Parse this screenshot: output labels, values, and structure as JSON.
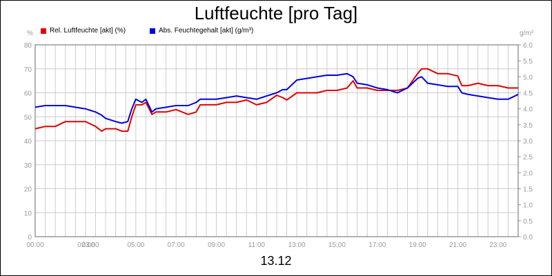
{
  "chart_data": {
    "type": "line",
    "title": "Luftfeuchte [pro Tag]",
    "xlabel": "13.12",
    "x_ticks": [
      "00:00",
      "02:00",
      "03:00",
      "05:00",
      "07:00",
      "09:00",
      "11:00",
      "13:00",
      "15:00",
      "17:00",
      "19:00",
      "21:00",
      "23:00"
    ],
    "x_range_hours": [
      0,
      24
    ],
    "y_left": {
      "unit": "%",
      "range": [
        0,
        80
      ],
      "ticks": [
        "0",
        "10",
        "20",
        "30",
        "40",
        "50",
        "60",
        "70",
        "80"
      ]
    },
    "y_right": {
      "unit": "g/m³",
      "range": [
        0,
        6
      ],
      "ticks": [
        "0.0",
        "0.5",
        "1.0",
        "1.5",
        "2.0",
        "2.5",
        "3.0",
        "3.5",
        "4.0",
        "4.5",
        "5.0",
        "5.5",
        "6.0"
      ]
    },
    "grid": true,
    "legend_position": "top-left",
    "series": [
      {
        "name": "Rel. Luftfeuchte [akt] (%)",
        "axis": "left",
        "color": "#e00000",
        "x": [
          0,
          0.5,
          1,
          1.5,
          2,
          2.5,
          3,
          3.3,
          3.5,
          4,
          4.3,
          4.6,
          4.8,
          5,
          5.3,
          5.5,
          5.8,
          6,
          6.5,
          7,
          7.3,
          7.6,
          8,
          8.2,
          8.5,
          9,
          9.5,
          10,
          10.5,
          11,
          11.5,
          12,
          12.3,
          12.5,
          13,
          13.5,
          14,
          14.5,
          15,
          15.5,
          15.8,
          16,
          16.5,
          17,
          17.5,
          18,
          18.5,
          19,
          19.2,
          19.5,
          20,
          20.5,
          21,
          21.2,
          21.5,
          22,
          22.5,
          23,
          23.5,
          24
        ],
        "values": [
          45,
          46,
          46,
          48,
          48,
          48,
          46,
          44,
          45,
          45,
          44,
          44,
          50,
          55,
          55,
          56,
          51,
          52,
          52,
          53,
          52,
          51,
          52,
          55,
          55,
          55,
          56,
          56,
          57,
          55,
          56,
          59,
          58,
          57,
          60,
          60,
          60,
          61,
          61,
          62,
          65,
          62,
          62,
          61,
          61,
          61,
          62,
          68,
          70,
          70,
          68,
          68,
          67,
          63,
          63,
          64,
          63,
          63,
          62,
          62
        ]
      },
      {
        "name": "Abs. Feuchtegehalt [akt] (g/m³)",
        "axis": "right",
        "color": "#0000dd",
        "x": [
          0,
          0.5,
          1,
          1.5,
          2,
          2.5,
          3,
          3.3,
          3.5,
          4,
          4.3,
          4.6,
          4.8,
          5,
          5.3,
          5.5,
          5.8,
          6,
          6.5,
          7,
          7.3,
          7.6,
          8,
          8.2,
          8.5,
          9,
          9.5,
          10,
          10.5,
          11,
          11.5,
          12,
          12.3,
          12.5,
          13,
          13.5,
          14,
          14.5,
          15,
          15.5,
          15.8,
          16,
          16.5,
          17,
          17.5,
          18,
          18.5,
          19,
          19.2,
          19.5,
          20,
          20.5,
          21,
          21.2,
          21.5,
          22,
          22.5,
          23,
          23.5,
          24
        ],
        "values": [
          4.05,
          4.1,
          4.1,
          4.1,
          4.05,
          4.0,
          3.9,
          3.8,
          3.7,
          3.6,
          3.55,
          3.6,
          4.0,
          4.3,
          4.2,
          4.3,
          3.9,
          4.0,
          4.05,
          4.1,
          4.1,
          4.1,
          4.2,
          4.3,
          4.3,
          4.3,
          4.35,
          4.4,
          4.35,
          4.3,
          4.4,
          4.5,
          4.6,
          4.6,
          4.9,
          4.95,
          5.0,
          5.05,
          5.05,
          5.1,
          5.0,
          4.8,
          4.75,
          4.65,
          4.6,
          4.5,
          4.65,
          4.95,
          5.0,
          4.8,
          4.75,
          4.7,
          4.7,
          4.5,
          4.45,
          4.4,
          4.35,
          4.3,
          4.3,
          4.45
        ]
      }
    ]
  }
}
